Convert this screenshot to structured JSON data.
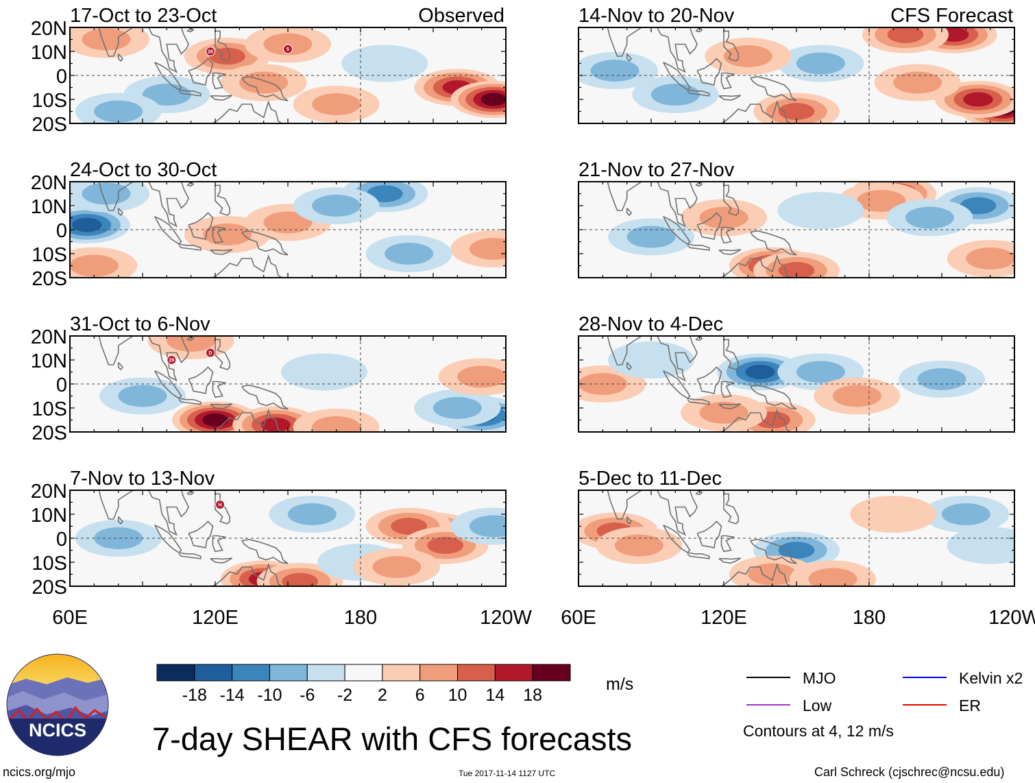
{
  "chart_data": {
    "type": "heatmap",
    "variable": "7-day SHEAR with CFS forecasts",
    "x_ticks": [
      "60E",
      "120E",
      "180",
      "120W"
    ],
    "y_ticks": [
      "20N",
      "10N",
      "0",
      "10S",
      "20S"
    ],
    "x_range_deg_east": [
      60,
      240
    ],
    "y_range_deg_north": [
      -20,
      20
    ],
    "panels": [
      {
        "id": "p1",
        "title": "17-Oct to 23-Oct",
        "label": "Observed",
        "column": "left",
        "row": 0,
        "blobs": [
          {
            "lon": 125,
            "lat": 8,
            "v": 10
          },
          {
            "lon": 150,
            "lat": 13,
            "v": 8
          },
          {
            "lon": 220,
            "lat": -5,
            "v": 14
          },
          {
            "lon": 235,
            "lat": -10,
            "v": 18
          },
          {
            "lon": 170,
            "lat": -12,
            "v": 8
          },
          {
            "lon": 100,
            "lat": -8,
            "v": -8
          },
          {
            "lon": 80,
            "lat": -15,
            "v": -8
          },
          {
            "lon": 190,
            "lat": 5,
            "v": -4
          },
          {
            "lon": 75,
            "lat": 15,
            "v": 6
          },
          {
            "lon": 140,
            "lat": -3,
            "v": 6
          }
        ],
        "storms": [
          {
            "lon": 118,
            "lat": 10,
            "id": "28"
          },
          {
            "lon": 150,
            "lat": 11,
            "id": "5"
          }
        ]
      },
      {
        "id": "p2",
        "title": "24-Oct to 30-Oct",
        "label": "",
        "column": "left",
        "row": 1,
        "blobs": [
          {
            "lon": 67,
            "lat": 2,
            "v": -14
          },
          {
            "lon": 190,
            "lat": 15,
            "v": -10
          },
          {
            "lon": 75,
            "lat": 15,
            "v": -6
          },
          {
            "lon": 125,
            "lat": -2,
            "v": 6
          },
          {
            "lon": 150,
            "lat": 3,
            "v": 6
          },
          {
            "lon": 70,
            "lat": -15,
            "v": 6
          },
          {
            "lon": 235,
            "lat": -8,
            "v": 8
          },
          {
            "lon": 200,
            "lat": -10,
            "v": -6
          },
          {
            "lon": 170,
            "lat": 10,
            "v": -6
          }
        ],
        "storms": []
      },
      {
        "id": "p3",
        "title": "31-Oct to 6-Nov",
        "label": "",
        "column": "left",
        "row": 2,
        "blobs": [
          {
            "lon": 120,
            "lat": -15,
            "v": 18
          },
          {
            "lon": 145,
            "lat": -17,
            "v": 14
          },
          {
            "lon": 170,
            "lat": -18,
            "v": 8
          },
          {
            "lon": 230,
            "lat": -13,
            "v": -14
          },
          {
            "lon": 220,
            "lat": -10,
            "v": -8
          },
          {
            "lon": 90,
            "lat": -5,
            "v": -6
          },
          {
            "lon": 165,
            "lat": 5,
            "v": -4
          },
          {
            "lon": 110,
            "lat": 18,
            "v": 6
          },
          {
            "lon": 230,
            "lat": 3,
            "v": 6
          }
        ],
        "storms": [
          {
            "lon": 102,
            "lat": 10,
            "id": "29"
          },
          {
            "lon": 118,
            "lat": 13,
            "id": "D"
          }
        ]
      },
      {
        "id": "p4",
        "title": "7-Nov to 13-Nov",
        "label": "",
        "column": "left",
        "row": 3,
        "blobs": [
          {
            "lon": 210,
            "lat": 3,
            "v": 14
          },
          {
            "lon": 200,
            "lat": 5,
            "v": 10
          },
          {
            "lon": 215,
            "lat": -3,
            "v": 10
          },
          {
            "lon": 140,
            "lat": -17,
            "v": 14
          },
          {
            "lon": 155,
            "lat": -18,
            "v": 10
          },
          {
            "lon": 80,
            "lat": 0,
            "v": -8
          },
          {
            "lon": 160,
            "lat": 10,
            "v": -6
          },
          {
            "lon": 235,
            "lat": 5,
            "v": -6
          },
          {
            "lon": 180,
            "lat": -10,
            "v": -4
          },
          {
            "lon": 195,
            "lat": -12,
            "v": 8
          }
        ],
        "storms": [
          {
            "lon": 122,
            "lat": 14,
            "id": "H"
          }
        ]
      },
      {
        "id": "p5",
        "title": "14-Nov to 20-Nov",
        "label": "CFS Forecast",
        "column": "right",
        "row": 0,
        "blobs": [
          {
            "lon": 215,
            "lat": 17,
            "v": 14
          },
          {
            "lon": 195,
            "lat": 17,
            "v": 10
          },
          {
            "lon": 235,
            "lat": -14,
            "v": 18
          },
          {
            "lon": 225,
            "lat": -10,
            "v": 14
          },
          {
            "lon": 150,
            "lat": -15,
            "v": 10
          },
          {
            "lon": 75,
            "lat": 2,
            "v": -8
          },
          {
            "lon": 100,
            "lat": -8,
            "v": -6
          },
          {
            "lon": 160,
            "lat": 5,
            "v": -6
          },
          {
            "lon": 130,
            "lat": 8,
            "v": 6
          },
          {
            "lon": 200,
            "lat": -3,
            "v": 6
          }
        ],
        "storms": []
      },
      {
        "id": "p6",
        "title": "21-Nov to 27-Nov",
        "label": "",
        "column": "right",
        "row": 1,
        "blobs": [
          {
            "lon": 190,
            "lat": 15,
            "v": 14
          },
          {
            "lon": 185,
            "lat": 12,
            "v": 8
          },
          {
            "lon": 225,
            "lat": 10,
            "v": -10
          },
          {
            "lon": 205,
            "lat": 5,
            "v": -6
          },
          {
            "lon": 140,
            "lat": -15,
            "v": 14
          },
          {
            "lon": 150,
            "lat": -17,
            "v": 10
          },
          {
            "lon": 90,
            "lat": -3,
            "v": -8
          },
          {
            "lon": 160,
            "lat": 8,
            "v": -4
          },
          {
            "lon": 120,
            "lat": 5,
            "v": 6
          },
          {
            "lon": 230,
            "lat": -12,
            "v": 6
          }
        ],
        "storms": []
      },
      {
        "id": "p7",
        "title": "28-Nov to 4-Dec",
        "label": "",
        "column": "right",
        "row": 2,
        "blobs": [
          {
            "lon": 135,
            "lat": 5,
            "v": -14
          },
          {
            "lon": 160,
            "lat": 5,
            "v": -8
          },
          {
            "lon": 210,
            "lat": 2,
            "v": -6
          },
          {
            "lon": 140,
            "lat": -15,
            "v": 10
          },
          {
            "lon": 120,
            "lat": -12,
            "v": 6
          },
          {
            "lon": 70,
            "lat": 0,
            "v": 6
          },
          {
            "lon": 175,
            "lat": -5,
            "v": 6
          },
          {
            "lon": 90,
            "lat": 10,
            "v": -4
          }
        ],
        "storms": []
      },
      {
        "id": "p8",
        "title": "5-Dec to 11-Dec",
        "label": "",
        "column": "right",
        "row": 3,
        "blobs": [
          {
            "lon": 75,
            "lat": 3,
            "v": 10
          },
          {
            "lon": 85,
            "lat": -3,
            "v": 6
          },
          {
            "lon": 150,
            "lat": -5,
            "v": -10
          },
          {
            "lon": 140,
            "lat": -15,
            "v": 8
          },
          {
            "lon": 165,
            "lat": -17,
            "v": 6
          },
          {
            "lon": 220,
            "lat": 10,
            "v": -6
          },
          {
            "lon": 230,
            "lat": -3,
            "v": -4
          },
          {
            "lon": 190,
            "lat": 10,
            "v": 4
          }
        ],
        "storms": []
      }
    ],
    "colorbar": {
      "labels": [
        "-18",
        "-14",
        "-10",
        "-6",
        "-2",
        "2",
        "6",
        "10",
        "14",
        "18"
      ],
      "colors": [
        "#0b2c5c",
        "#1f5e9c",
        "#3b85bd",
        "#7fb6d9",
        "#c6e0ef",
        "#f7f7f7",
        "#fbcdb4",
        "#f09d7b",
        "#d7604d",
        "#b2182b",
        "#67001f"
      ],
      "units": "m/s"
    },
    "legend": {
      "entries": [
        {
          "name": "MJO",
          "color": "#000000"
        },
        {
          "name": "Kelvin x2",
          "color": "#0000ff"
        },
        {
          "name": "Low",
          "color": "#9a32cd"
        },
        {
          "name": "ER",
          "color": "#ee0000"
        }
      ],
      "note": "Contours at 4, 12 m/s"
    },
    "title": "7-day SHEAR with CFS forecasts"
  },
  "logo": {
    "text": "NCICS"
  },
  "footer": {
    "url": "ncics.org/mjo",
    "timestamp": "Tue 2017-11-14 1127 UTC",
    "credit": "Carl Schreck (cjschrec@ncsu.edu)"
  }
}
